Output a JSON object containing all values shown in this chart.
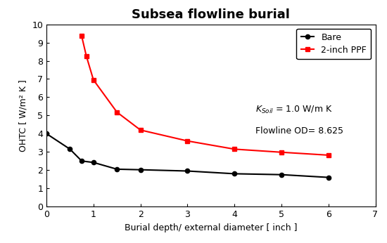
{
  "title": "Subsea flowline burial",
  "xlabel": "Burial depth/ external diameter [ inch ]",
  "ylabel": "OHTC [ W/m² K ]",
  "xlim": [
    0,
    7
  ],
  "ylim": [
    0,
    10
  ],
  "xticks": [
    0,
    1,
    2,
    3,
    4,
    5,
    6,
    7
  ],
  "yticks": [
    0,
    1,
    2,
    3,
    4,
    5,
    6,
    7,
    8,
    9,
    10
  ],
  "bare_x": [
    0,
    0.5,
    0.75,
    1.0,
    1.5,
    2.0,
    3.0,
    4.0,
    5.0,
    6.0
  ],
  "bare_y": [
    4.0,
    3.15,
    2.5,
    2.42,
    2.05,
    2.02,
    1.95,
    1.8,
    1.75,
    1.6
  ],
  "ppf_x": [
    0.75,
    0.85,
    1.0,
    1.5,
    2.0,
    3.0,
    4.0,
    5.0,
    6.0
  ],
  "ppf_y": [
    9.35,
    8.25,
    6.95,
    5.18,
    4.2,
    3.6,
    3.15,
    2.98,
    2.82
  ],
  "bare_color": "#000000",
  "ppf_color": "#ff0000",
  "annotation_line2": "Flowline OD= 8.625",
  "legend_bare": "Bare",
  "legend_ppf": "2-inch PPF",
  "title_fontsize": 13,
  "label_fontsize": 9,
  "tick_fontsize": 9,
  "annotation_fontsize": 9,
  "legend_fontsize": 9,
  "fig_width": 5.5,
  "fig_height": 3.46,
  "dpi": 100
}
